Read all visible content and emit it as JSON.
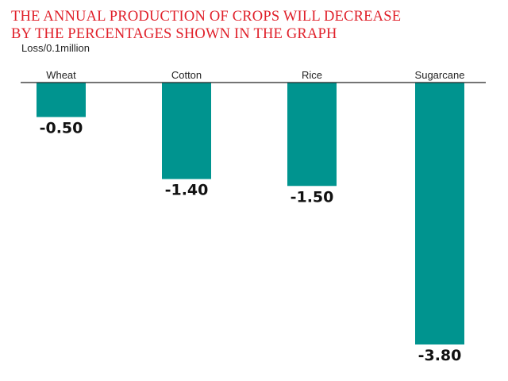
{
  "title_line1": "THE ANNUAL PRODUCTION OF CROPS WILL DECREASE",
  "title_line2": "BY THE PERCENTAGES SHOWN IN THE GRAPH",
  "colors": {
    "bar": "#00948f",
    "title": "#e0202a",
    "axis": "#222222"
  },
  "chart_data": {
    "type": "bar",
    "title": "THE ANNUAL PRODUCTION OF CROPS WILL DECREASE BY THE PERCENTAGES SHOWN IN THE GRAPH",
    "ylabel": "Loss/0.1million",
    "xlabel": "",
    "categories": [
      "Wheat",
      "Cotton",
      "Rice",
      "Sugarcane"
    ],
    "values": [
      -0.5,
      -1.4,
      -1.5,
      -3.8
    ],
    "value_labels": [
      "-0.50",
      "-1.40",
      "-1.50",
      "-3.80"
    ],
    "ylim": [
      -3.8,
      0
    ],
    "grid": false,
    "legend": "none"
  }
}
